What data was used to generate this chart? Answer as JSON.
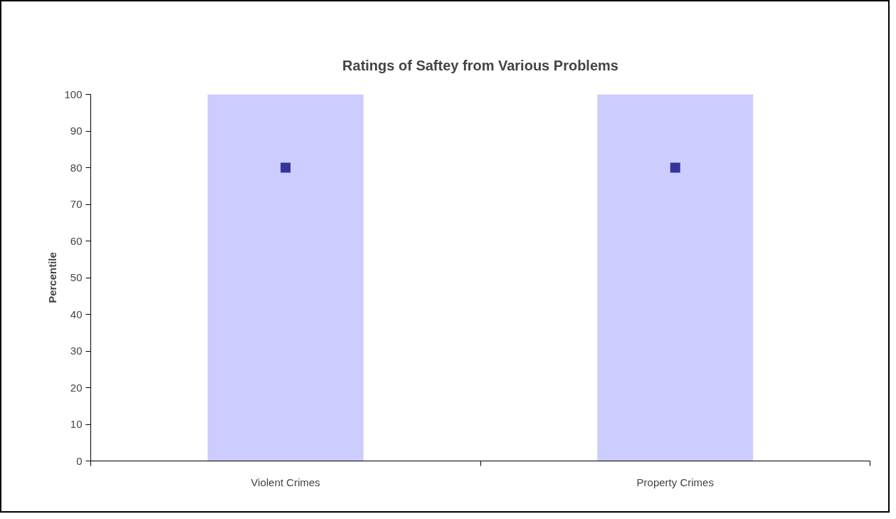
{
  "chart_data": {
    "type": "bar",
    "title": "Ratings of Saftey from Various Problems",
    "ylabel": "Percentile",
    "categories": [
      "Violent Crimes",
      "Property Crimes"
    ],
    "series": [
      {
        "color": "#ccccff",
        "values": [
          100,
          100
        ]
      },
      {
        "type": "scatter",
        "marker": "square",
        "color": "#333399",
        "values": [
          80,
          80
        ]
      }
    ],
    "ylim": [
      0,
      100
    ],
    "yticks": [
      0,
      10,
      20,
      30,
      40,
      50,
      60,
      70,
      80,
      90,
      100
    ],
    "grid": false
  }
}
